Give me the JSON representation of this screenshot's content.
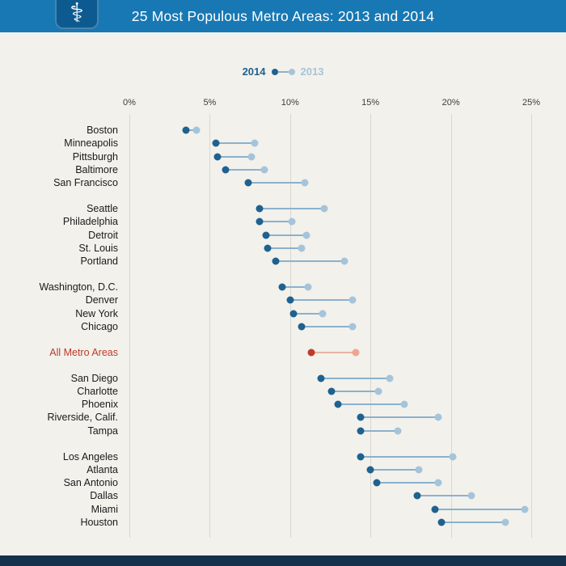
{
  "header": {
    "title": "25 Most Populous Metro Areas: 2013 and 2014",
    "icon_glyph": "⚕"
  },
  "legend": {
    "label_2014": "2014",
    "label_2013": "2013"
  },
  "chart_data": {
    "type": "dumbbell",
    "title": "25 Most Populous Metro Areas: 2013 and 2014",
    "unit": "%",
    "xlim": [
      0,
      25
    ],
    "ticks": [
      0,
      5,
      10,
      15,
      20,
      25
    ],
    "tick_labels": [
      "0%",
      "5%",
      "10%",
      "15%",
      "20%",
      "25%"
    ],
    "series": [
      "2014",
      "2013"
    ],
    "legend_position": "top-center",
    "grid": "vertical",
    "groups": [
      {
        "rows": [
          {
            "label": "Boston",
            "v2014": 3.5,
            "v2013": 4.2
          },
          {
            "label": "Minneapolis",
            "v2014": 5.4,
            "v2013": 7.8
          },
          {
            "label": "Pittsburgh",
            "v2014": 5.5,
            "v2013": 7.6
          },
          {
            "label": "Baltimore",
            "v2014": 6.0,
            "v2013": 8.4
          },
          {
            "label": "San Francisco",
            "v2014": 7.4,
            "v2013": 10.9
          }
        ]
      },
      {
        "rows": [
          {
            "label": "Seattle",
            "v2014": 8.1,
            "v2013": 12.1
          },
          {
            "label": "Philadelphia",
            "v2014": 8.1,
            "v2013": 10.1
          },
          {
            "label": "Detroit",
            "v2014": 8.5,
            "v2013": 11.0
          },
          {
            "label": "St. Louis",
            "v2014": 8.6,
            "v2013": 10.7
          },
          {
            "label": "Portland",
            "v2014": 9.1,
            "v2013": 13.4
          }
        ]
      },
      {
        "rows": [
          {
            "label": "Washington, D.C.",
            "v2014": 9.5,
            "v2013": 11.1
          },
          {
            "label": "Denver",
            "v2014": 10.0,
            "v2013": 13.9
          },
          {
            "label": "New York",
            "v2014": 10.2,
            "v2013": 12.0
          },
          {
            "label": "Chicago",
            "v2014": 10.7,
            "v2013": 13.9
          }
        ]
      },
      {
        "rows": [
          {
            "label": "All Metro Areas",
            "v2014": 11.3,
            "v2013": 14.1,
            "highlight": true
          }
        ]
      },
      {
        "rows": [
          {
            "label": "San Diego",
            "v2014": 11.9,
            "v2013": 16.2
          },
          {
            "label": "Charlotte",
            "v2014": 12.6,
            "v2013": 15.5
          },
          {
            "label": "Phoenix",
            "v2014": 13.0,
            "v2013": 17.1
          },
          {
            "label": "Riverside, Calif.",
            "v2014": 14.4,
            "v2013": 19.2
          },
          {
            "label": "Tampa",
            "v2014": 14.4,
            "v2013": 16.7
          }
        ]
      },
      {
        "rows": [
          {
            "label": "Los Angeles",
            "v2014": 14.4,
            "v2013": 20.1
          },
          {
            "label": "Atlanta",
            "v2014": 15.0,
            "v2013": 18.0
          },
          {
            "label": "San Antonio",
            "v2014": 15.4,
            "v2013": 19.2
          },
          {
            "label": "Dallas",
            "v2014": 17.9,
            "v2013": 21.3
          },
          {
            "label": "Miami",
            "v2014": 19.0,
            "v2013": 24.6
          },
          {
            "label": "Houston",
            "v2014": 19.4,
            "v2013": 23.4
          }
        ]
      }
    ]
  },
  "colors": {
    "page_bg": "#f2f1ec",
    "header_bg": "#1878b4",
    "logo_bg": "#0d5a91",
    "footer_bg": "#15314b",
    "dot_2014": "#1f618f",
    "dot_2013": "#a6c4d9",
    "connector": "#8bb1cd",
    "highlight_2014": "#bf3a2b",
    "highlight_2013": "#eda68f",
    "highlight_connector": "#e9b4a4",
    "highlight_label": "#bf3a2b",
    "grid": "#d9d7d1",
    "label": "#1a1a1a",
    "tick": "#3d3d3d"
  }
}
